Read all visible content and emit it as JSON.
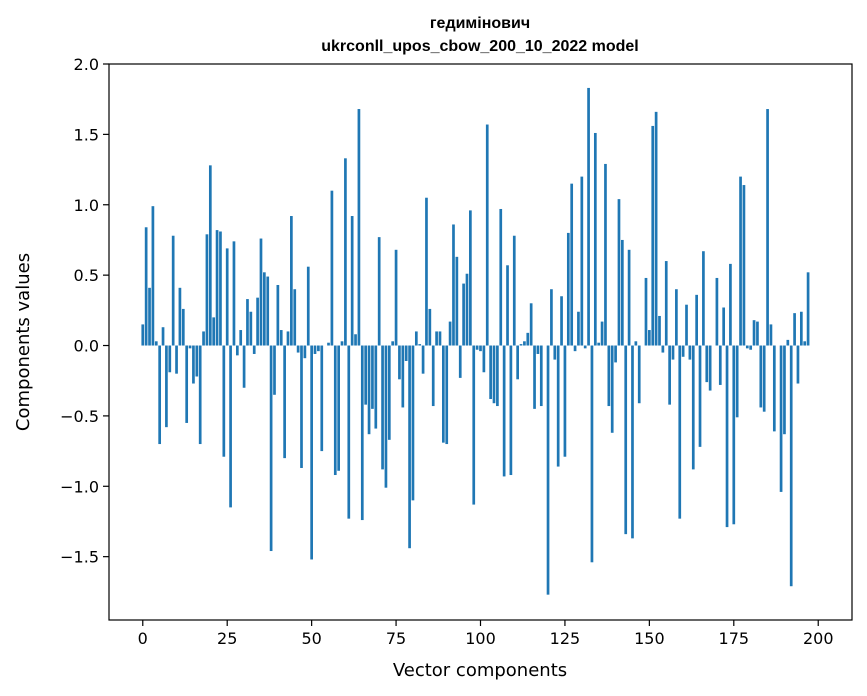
{
  "chart_data": {
    "type": "bar",
    "title": "гедимінович",
    "subtitle": "ukrconll_upos_cbow_200_10_2022 model",
    "xlabel": "Vector components",
    "ylabel": "Components values",
    "xlim": [
      -10,
      210
    ],
    "ylim": [
      -1.95,
      2.0
    ],
    "xticks": [
      0,
      25,
      50,
      75,
      100,
      125,
      150,
      175,
      200
    ],
    "yticks": [
      -1.5,
      -1.0,
      -0.5,
      0.0,
      0.5,
      1.0,
      1.5,
      2.0
    ],
    "ytick_labels": [
      "−1.5",
      "−1.0",
      "−0.5",
      "0.0",
      "0.5",
      "1.0",
      "1.5",
      "2.0"
    ],
    "bar_color": "#1f77b4",
    "values": [
      0.15,
      0.84,
      0.41,
      0.99,
      0.03,
      -0.7,
      0.13,
      -0.58,
      -0.19,
      0.78,
      -0.2,
      0.41,
      0.26,
      -0.55,
      -0.02,
      -0.27,
      -0.22,
      -0.7,
      0.1,
      0.79,
      1.28,
      0.2,
      0.82,
      0.81,
      -0.79,
      0.69,
      -1.15,
      0.74,
      -0.07,
      0.11,
      -0.3,
      0.33,
      0.24,
      -0.06,
      0.34,
      0.76,
      0.52,
      0.49,
      -1.46,
      -0.35,
      0.43,
      0.11,
      -0.8,
      0.1,
      0.92,
      0.4,
      -0.05,
      -0.87,
      -0.09,
      0.56,
      -1.52,
      -0.06,
      -0.04,
      -0.75,
      0.0,
      0.02,
      1.1,
      -0.92,
      -0.89,
      0.03,
      1.33,
      -1.23,
      0.92,
      0.08,
      1.68,
      -1.24,
      -0.42,
      -0.63,
      -0.45,
      -0.59,
      0.77,
      -0.88,
      -1.01,
      -0.67,
      0.03,
      0.68,
      -0.24,
      -0.44,
      -0.11,
      -1.44,
      -1.1,
      0.1,
      0.01,
      -0.2,
      1.05,
      0.26,
      -0.43,
      0.1,
      0.1,
      -0.69,
      -0.7,
      0.17,
      0.86,
      0.63,
      -0.23,
      0.44,
      0.51,
      0.96,
      -1.13,
      -0.03,
      -0.04,
      -0.19,
      1.57,
      -0.38,
      -0.41,
      -0.43,
      0.97,
      -0.93,
      0.57,
      -0.92,
      0.78,
      -0.24,
      0.01,
      0.03,
      0.09,
      0.3,
      -0.45,
      -0.06,
      -0.43,
      0.0,
      -1.77,
      0.4,
      -0.1,
      -0.86,
      0.35,
      -0.79,
      0.8,
      1.15,
      -0.04,
      0.24,
      1.2,
      -0.02,
      1.83,
      -1.54,
      1.51,
      0.02,
      0.17,
      1.29,
      -0.43,
      -0.62,
      -0.12,
      1.04,
      0.75,
      -1.34,
      0.68,
      -1.37,
      0.03,
      -0.41,
      0.0,
      0.48,
      0.11,
      1.56,
      1.66,
      0.21,
      -0.05,
      0.6,
      -0.42,
      -0.1,
      0.4,
      -1.23,
      -0.08,
      0.29,
      -0.1,
      -0.88,
      0.36,
      -0.72,
      0.67,
      -0.26,
      -0.32,
      0.0,
      0.48,
      -0.28,
      0.27,
      -1.29,
      0.58,
      -1.27,
      -0.51,
      1.2,
      1.14,
      -0.02,
      -0.03,
      0.18,
      0.17,
      -0.44,
      -0.47,
      1.68,
      0.15,
      -0.61,
      0.0,
      -1.04,
      -0.63,
      0.04,
      -1.71,
      0.23,
      -0.27,
      0.24,
      0.03,
      0.52,
      0.0,
      0.0
    ]
  }
}
